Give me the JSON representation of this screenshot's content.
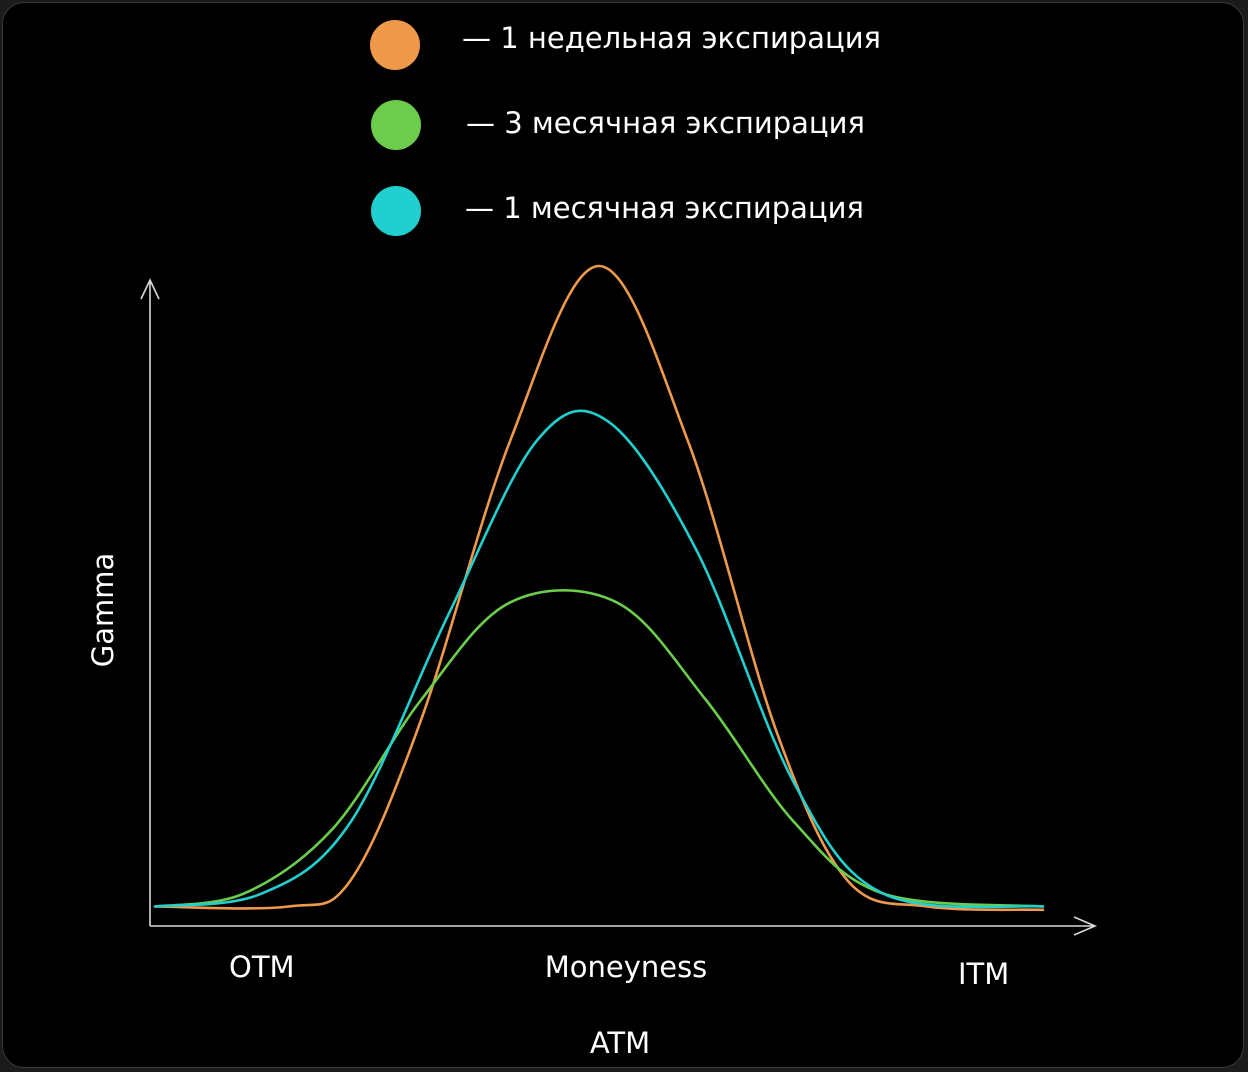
{
  "chart_data": {
    "type": "line",
    "title": "",
    "xlabel": "Moneyness",
    "ylabel": "Gamma",
    "x_tick_labels": {
      "left": "OTM",
      "center": "ATM",
      "right": "ITM"
    },
    "legend_position": "top-center",
    "grid": false,
    "series": [
      {
        "name": "1 недельная экспирация",
        "legend_label": "— 1 недельная экспирация",
        "color": "#ef9a4a",
        "points": [
          [
            0.0,
            0.01
          ],
          [
            0.15,
            0.01
          ],
          [
            0.22,
            0.05
          ],
          [
            0.3,
            0.3
          ],
          [
            0.4,
            0.73
          ],
          [
            0.5,
            1.0
          ],
          [
            0.6,
            0.73
          ],
          [
            0.7,
            0.28
          ],
          [
            0.78,
            0.05
          ],
          [
            0.87,
            0.01
          ],
          [
            1.0,
            0.005
          ]
        ]
      },
      {
        "name": "3 месячная экспирация",
        "legend_label": "— 3 месячная экспирация",
        "color": "#6ccc4c",
        "points": [
          [
            0.0,
            0.01
          ],
          [
            0.1,
            0.03
          ],
          [
            0.2,
            0.13
          ],
          [
            0.3,
            0.33
          ],
          [
            0.4,
            0.48
          ],
          [
            0.52,
            0.48
          ],
          [
            0.62,
            0.33
          ],
          [
            0.72,
            0.14
          ],
          [
            0.82,
            0.03
          ],
          [
            1.0,
            0.01
          ]
        ]
      },
      {
        "name": "1 месячная экспирация",
        "legend_label": "— 1 месячная экспирация",
        "color": "#22cfcf",
        "points": [
          [
            0.0,
            0.01
          ],
          [
            0.12,
            0.03
          ],
          [
            0.22,
            0.14
          ],
          [
            0.33,
            0.46
          ],
          [
            0.43,
            0.73
          ],
          [
            0.51,
            0.76
          ],
          [
            0.61,
            0.56
          ],
          [
            0.72,
            0.2
          ],
          [
            0.82,
            0.03
          ],
          [
            1.0,
            0.01
          ]
        ]
      }
    ]
  }
}
